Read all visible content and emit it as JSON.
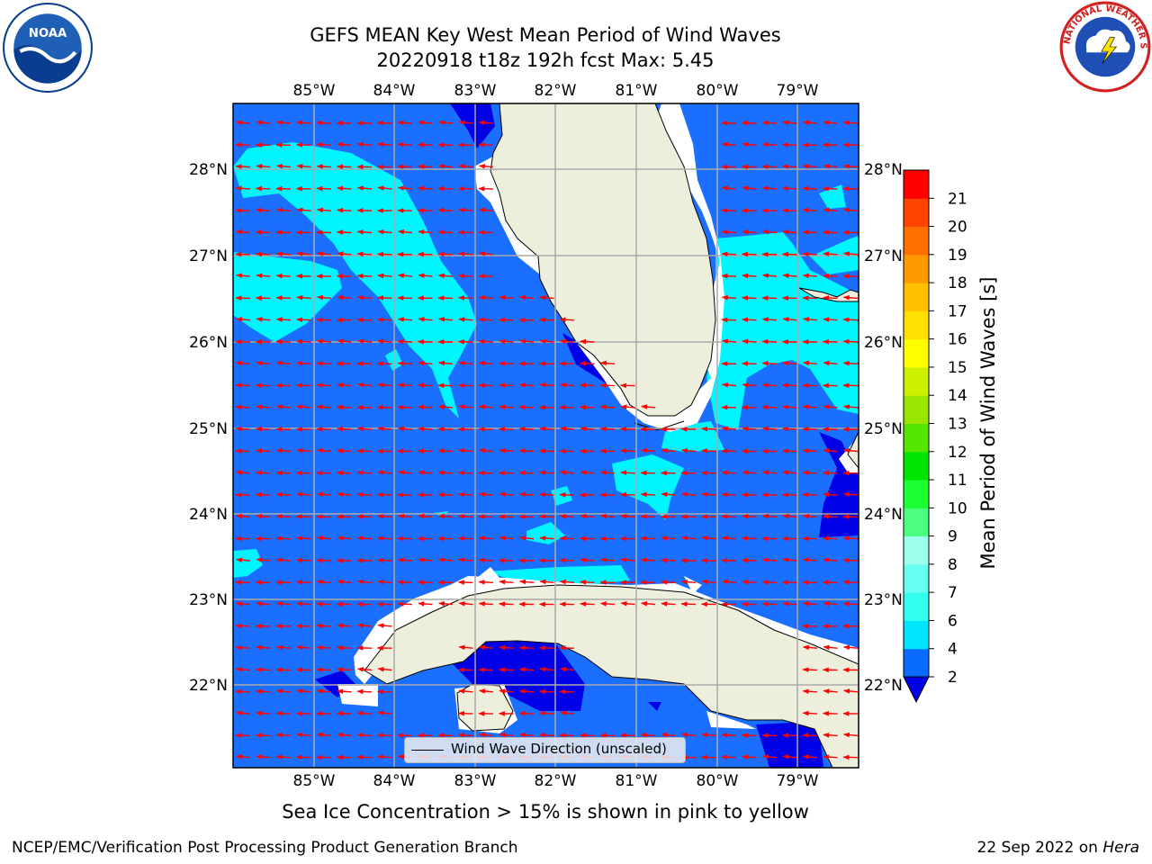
{
  "title_line1": "GEFS MEAN Key West Mean Period of Wind Waves",
  "title_line2": "20220918 t18z 192h fcst   Max: 5.45",
  "lon_ticks": [
    "85°W",
    "84°W",
    "83°W",
    "82°W",
    "81°W",
    "80°W",
    "79°W"
  ],
  "lat_ticks": [
    "28°N",
    "27°N",
    "26°N",
    "25°N",
    "24°N",
    "23°N",
    "22°N"
  ],
  "legend_label": "Wind Wave Direction (unscaled)",
  "colorbar": {
    "title": "Mean Period of Wind Waves [s]",
    "ticks": [
      "2",
      "4",
      "6",
      "7",
      "8",
      "9",
      "10",
      "11",
      "12",
      "13",
      "14",
      "15",
      "16",
      "17",
      "18",
      "19",
      "20",
      "21"
    ],
    "colors": [
      "#0a6cff",
      "#00e5ff",
      "#33ffee",
      "#66fff2",
      "#9effee",
      "#4dff80",
      "#1bff33",
      "#00e600",
      "#55e600",
      "#99e600",
      "#ccf000",
      "#ffff00",
      "#ffe000",
      "#ffc000",
      "#ff9900",
      "#ff7000",
      "#ff4400",
      "#ff0000"
    ],
    "under_color": "#0000e6"
  },
  "caption": "Sea Ice Concentration > 15% is shown in pink to yellow",
  "footer_left": "NCEP/EMC/Verification Post Processing Product Generation Branch",
  "footer_right_date": "22 Sep 2022 on ",
  "footer_right_host": "Hera",
  "logo_left": "NOAA",
  "logo_right": "NATIONAL WEATHER SERVICE",
  "colors": {
    "ocean_main": "#1a6fff",
    "ocean_cyan": "#00f5ff",
    "ocean_deep": "#0000e6",
    "land": "#eeeedd",
    "arrow": "#ff0000",
    "grid": "#aaaaaa"
  }
}
